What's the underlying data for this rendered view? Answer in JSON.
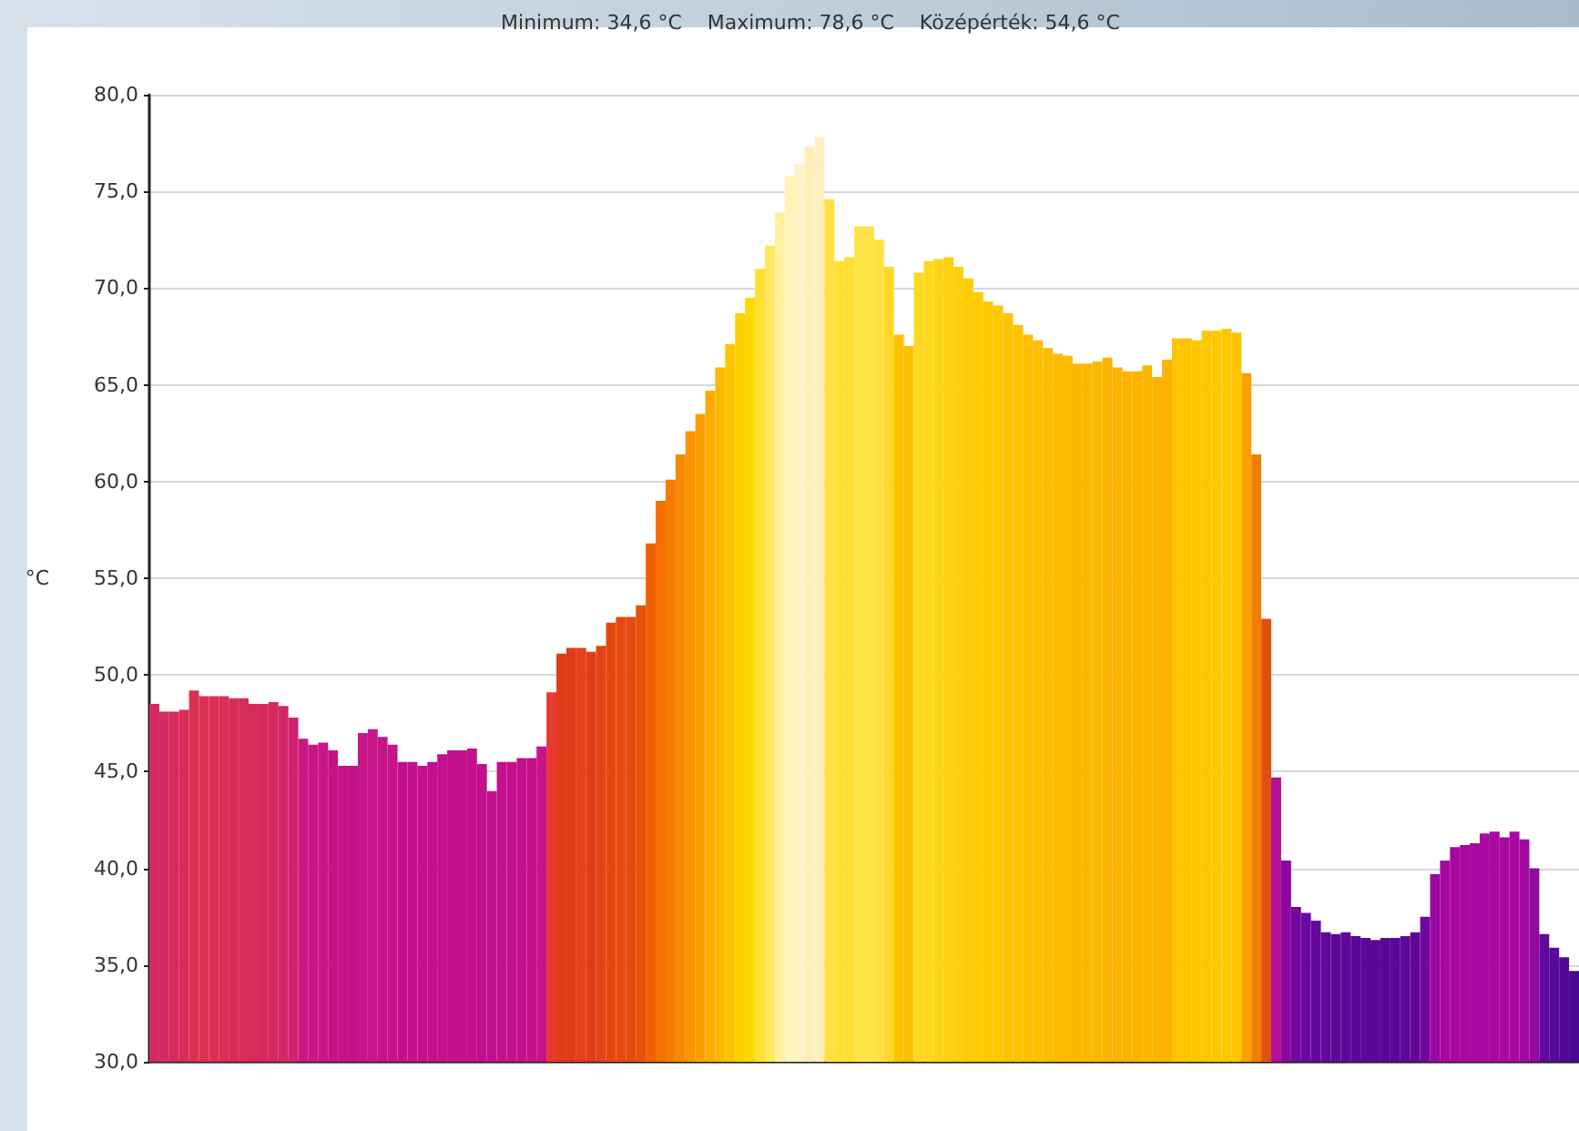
{
  "chart_data": {
    "type": "bar",
    "title": "Minimum: 34,6 °C    Maximum: 78,6 °C    Középérték: 54,6 °C",
    "ylabel": "°C",
    "categories": [
      null,
      null,
      null,
      null,
      null,
      null,
      null,
      null,
      null,
      null,
      null,
      null,
      null,
      null,
      null,
      null,
      null,
      null,
      null,
      null,
      null,
      null,
      null,
      null,
      null,
      null,
      null,
      null,
      null,
      null,
      null,
      null,
      null,
      null,
      null,
      null,
      null,
      null,
      null,
      null,
      null,
      null,
      null,
      null,
      null,
      null,
      null,
      null,
      null,
      null,
      null,
      null,
      null,
      null,
      null,
      null,
      null,
      null,
      null,
      null,
      null,
      null,
      null,
      null,
      null,
      null,
      null,
      null,
      null,
      null,
      null,
      null,
      null,
      null,
      null,
      null,
      null,
      null,
      null,
      null,
      null,
      null,
      null,
      null,
      null,
      null,
      null,
      null,
      null,
      null,
      null,
      null,
      null,
      null,
      null,
      null,
      null,
      null,
      null,
      null,
      null,
      null,
      null,
      null,
      null,
      null,
      null,
      null,
      null,
      null,
      null,
      null,
      null,
      null,
      null,
      null,
      null,
      null,
      null,
      null,
      null,
      null,
      null,
      null,
      null,
      null,
      null,
      null,
      null,
      null,
      null,
      null,
      null,
      null,
      null,
      null,
      null,
      null,
      null,
      null,
      null,
      null,
      null,
      null
    ],
    "values": [
      48.5,
      48.1,
      48.1,
      48.2,
      49.2,
      48.9,
      48.9,
      48.9,
      48.8,
      48.8,
      48.5,
      48.5,
      48.6,
      48.4,
      47.8,
      46.7,
      46.4,
      46.5,
      46.1,
      45.3,
      45.3,
      47.0,
      47.2,
      46.8,
      46.4,
      45.5,
      45.5,
      45.3,
      45.5,
      45.9,
      46.1,
      46.1,
      46.2,
      45.4,
      44.0,
      45.5,
      45.5,
      45.7,
      45.7,
      46.3,
      49.1,
      51.1,
      51.4,
      51.4,
      51.2,
      51.5,
      52.7,
      53.0,
      53.0,
      53.6,
      56.8,
      59.0,
      60.1,
      61.4,
      62.6,
      63.5,
      64.7,
      65.9,
      67.1,
      68.7,
      69.5,
      71.0,
      72.2,
      73.9,
      75.8,
      76.4,
      77.3,
      77.8,
      74.6,
      71.4,
      71.6,
      73.2,
      73.2,
      72.5,
      71.1,
      67.6,
      67.0,
      70.8,
      71.4,
      71.5,
      71.6,
      71.1,
      70.5,
      69.8,
      69.3,
      69.1,
      68.7,
      68.1,
      67.6,
      67.3,
      66.9,
      66.6,
      66.5,
      66.1,
      66.1,
      66.2,
      66.4,
      65.9,
      65.7,
      65.7,
      66.0,
      65.4,
      66.3,
      67.4,
      67.4,
      67.3,
      67.8,
      67.8,
      67.9,
      67.7,
      65.6,
      61.4,
      52.9,
      44.7,
      40.4,
      38.0,
      37.7,
      37.3,
      36.7,
      36.6,
      36.7,
      36.5,
      36.4,
      36.3,
      36.4,
      36.4,
      36.5,
      36.7,
      37.5,
      39.7,
      40.4,
      41.1,
      41.2,
      41.3,
      41.8,
      41.9,
      41.6,
      41.9,
      41.5,
      40.0,
      36.6,
      35.9,
      35.4,
      34.7
    ],
    "colors": [
      "#d42a62",
      "#d42a62",
      "#d82c5c",
      "#d82c5c",
      "#dc3050",
      "#dc3052",
      "#dc3052",
      "#da2e56",
      "#d82c58",
      "#d82c58",
      "#d62a5c",
      "#d62a5c",
      "#d42860",
      "#d22666",
      "#d02270",
      "#c81880",
      "#c81682",
      "#c81684",
      "#c61486",
      "#c41288",
      "#c41288",
      "#c8168a",
      "#c8168a",
      "#c61488",
      "#c61488",
      "#c4108c",
      "#c4108c",
      "#c4108c",
      "#c4108c",
      "#c4108c",
      "#c4108c",
      "#c4108c",
      "#c4108c",
      "#c0108e",
      "#c0108e",
      "#c4108c",
      "#c4108c",
      "#c4108c",
      "#c4108c",
      "#c8128a",
      "#e83a30",
      "#e03c1c",
      "#e03c1c",
      "#e4401a",
      "#e03c1c",
      "#e4421a",
      "#e4480f",
      "#e44a10",
      "#e44a10",
      "#e8500c",
      "#f06000",
      "#f47000",
      "#f47c00",
      "#f88800",
      "#fa9400",
      "#fca000",
      "#fcac00",
      "#feb800",
      "#fec400",
      "#ffd000",
      "#ffd800",
      "#ffe030",
      "#ffe860",
      "#fff0a0",
      "#fff4b8",
      "#fff2c4",
      "#ffeeb8",
      "#fff0c0",
      "#ffe040",
      "#ffe030",
      "#ffe030",
      "#ffe448",
      "#ffe448",
      "#ffe040",
      "#ffd828",
      "#fcc400",
      "#fcc000",
      "#ffd820",
      "#ffd820",
      "#ffd418",
      "#ffd010",
      "#ffd010",
      "#ffcc08",
      "#ffcc08",
      "#ffc800",
      "#ffc800",
      "#ffc400",
      "#ffc400",
      "#fec000",
      "#fec000",
      "#fdbc00",
      "#fdbc00",
      "#fdbc00",
      "#fcb800",
      "#fcb800",
      "#fcb800",
      "#fcb400",
      "#fcb400",
      "#fcb400",
      "#fcb400",
      "#fcb800",
      "#fcb400",
      "#fcb400",
      "#fec400",
      "#fec400",
      "#fec400",
      "#fec800",
      "#fec800",
      "#fec800",
      "#fec400",
      "#fca000",
      "#f08000",
      "#e05010",
      "#b0109a",
      "#8c08a0",
      "#7008a0",
      "#6808a0",
      "#64089c",
      "#60089a",
      "#5c0898",
      "#5c0898",
      "#5a0898",
      "#5a0898",
      "#580896",
      "#580896",
      "#5a0898",
      "#5c0898",
      "#600898",
      "#7008a0",
      "#9a08a0",
      "#a808a0",
      "#a808a0",
      "#a808a0",
      "#a808a0",
      "#aa08a0",
      "#aa08a0",
      "#aa08a0",
      "#aa08a0",
      "#a008a0",
      "#9008a0",
      "#6008a0",
      "#5a0898",
      "#520894",
      "#4a0890"
    ],
    "ylim": [
      30,
      80
    ],
    "yticks": [
      {
        "value": 30,
        "label": "30,0"
      },
      {
        "value": 35,
        "label": "35,0"
      },
      {
        "value": 40,
        "label": "40,0"
      },
      {
        "value": 45,
        "label": "45,0"
      },
      {
        "value": 50,
        "label": "50,0"
      },
      {
        "value": 55,
        "label": "55,0"
      },
      {
        "value": 60,
        "label": "60,0"
      },
      {
        "value": 65,
        "label": "65,0"
      },
      {
        "value": 70,
        "label": "70,0"
      },
      {
        "value": 75,
        "label": "75,0"
      },
      {
        "value": 80,
        "label": "80,0"
      }
    ],
    "grid": "y",
    "tick_labels": "y"
  }
}
